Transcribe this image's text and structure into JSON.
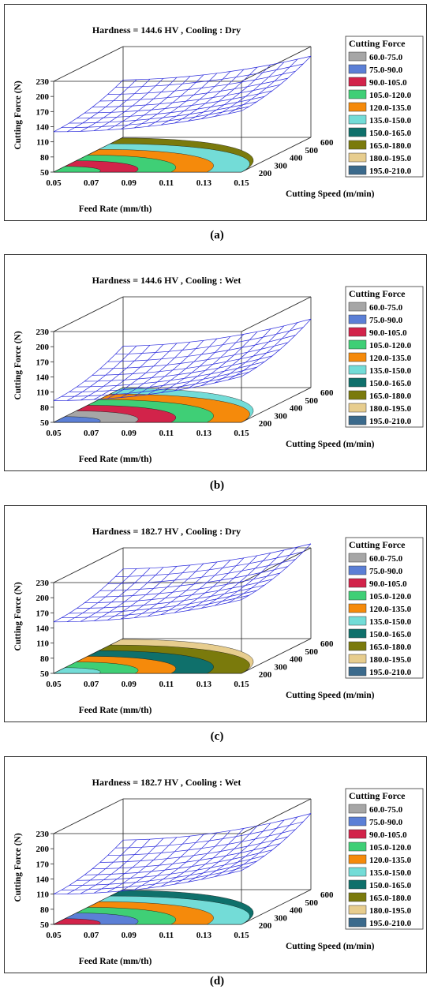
{
  "chart_data": [
    {
      "panel": "a",
      "type": "surface",
      "title": "Hardness = 144.6 HV , Cooling : Dry",
      "xlabel": "Feed Rate (mm/th)",
      "ylabel": "Cutting Speed (m/min)",
      "zlabel": "Cutting Force (N)",
      "x_ticks": [
        "0.05",
        "0.07",
        "0.09",
        "0.11",
        "0.13",
        "0.15"
      ],
      "y_ticks": [
        "200",
        "300",
        "400",
        "500",
        "600"
      ],
      "z_ticks": [
        "50",
        "80",
        "110",
        "140",
        "170",
        "200",
        "230"
      ],
      "xlim": [
        0.05,
        0.15
      ],
      "ylim": [
        150,
        600
      ],
      "zlim": [
        50,
        230
      ],
      "surface_z_front_left": 130,
      "surface_z_back_right": 205,
      "contour_bands_front_to_back": [
        "105.0-120.0",
        "90.0-105.0",
        "105.0-120.0",
        "120.0-135.0",
        "135.0-150.0",
        "165.0-180.0"
      ]
    },
    {
      "panel": "b",
      "type": "surface",
      "title": "Hardness = 144.6 HV , Cooling : Wet",
      "xlabel": "Feed Rate (mm/th)",
      "ylabel": "Cutting Speed (m/min)",
      "zlabel": "Cutting Force (N)",
      "x_ticks": [
        "0.05",
        "0.07",
        "0.09",
        "0.11",
        "0.13",
        "0.15"
      ],
      "y_ticks": [
        "200",
        "300",
        "400",
        "500",
        "600"
      ],
      "z_ticks": [
        "50",
        "80",
        "110",
        "140",
        "170",
        "200",
        "230"
      ],
      "xlim": [
        0.05,
        0.15
      ],
      "ylim": [
        150,
        600
      ],
      "zlim": [
        50,
        230
      ],
      "surface_z_front_left": 93,
      "surface_z_back_right": 180,
      "contour_bands_front_to_back": [
        "75.0-90.0",
        "60.0-75.0",
        "90.0-105.0",
        "105.0-120.0",
        "120.0-135.0",
        "135.0-150.0"
      ]
    },
    {
      "panel": "c",
      "type": "surface",
      "title": "Hardness = 182.7 HV , Cooling : Dry",
      "xlabel": "Feed Rate (mm/th)",
      "ylabel": "Cutting Speed (m/min)",
      "zlabel": "Cutting Force (N)",
      "x_ticks": [
        "0.05",
        "0.07",
        "0.09",
        "0.11",
        "0.13",
        "0.15"
      ],
      "y_ticks": [
        "200",
        "300",
        "400",
        "500",
        "600"
      ],
      "z_ticks": [
        "50",
        "80",
        "110",
        "140",
        "170",
        "200",
        "230"
      ],
      "xlim": [
        0.05,
        0.15
      ],
      "ylim": [
        150,
        600
      ],
      "zlim": [
        50,
        230
      ],
      "surface_z_front_left": 152,
      "surface_z_back_right": 232,
      "contour_bands_front_to_back": [
        "135.0-150.0",
        "105.0-120.0",
        "120.0-135.0",
        "150.0-165.0",
        "165.0-180.0",
        "180.0-195.0"
      ]
    },
    {
      "panel": "d",
      "type": "surface",
      "title": "Hardness = 182.7 HV , Cooling : Wet",
      "xlabel": "Feed Rate (mm/th)",
      "ylabel": "Cutting Speed (m/min)",
      "zlabel": "Cutting Force (N)",
      "x_ticks": [
        "0.05",
        "0.07",
        "0.09",
        "0.11",
        "0.13",
        "0.15"
      ],
      "y_ticks": [
        "200",
        "300",
        "400",
        "500",
        "600"
      ],
      "z_ticks": [
        "50",
        "80",
        "110",
        "140",
        "170",
        "200",
        "230"
      ],
      "xlim": [
        0.05,
        0.15
      ],
      "ylim": [
        150,
        600
      ],
      "zlim": [
        50,
        230
      ],
      "surface_z_front_left": 110,
      "surface_z_back_right": 195,
      "contour_bands_front_to_back": [
        "90.0-105.0",
        "75.0-90.0",
        "105.0-120.0",
        "120.0-135.0",
        "135.0-150.0",
        "150.0-165.0"
      ]
    }
  ],
  "legend": {
    "title": "Cutting Force",
    "items": [
      {
        "label": "60.0-75.0",
        "color": "#a6a6a6"
      },
      {
        "label": "75.0-90.0",
        "color": "#5b7fd6"
      },
      {
        "label": "90.0-105.0",
        "color": "#d2234a"
      },
      {
        "label": "105.0-120.0",
        "color": "#3fcf76"
      },
      {
        "label": "120.0-135.0",
        "color": "#f58a0b"
      },
      {
        "label": "135.0-150.0",
        "color": "#73dcd7"
      },
      {
        "label": "150.0-165.0",
        "color": "#0f706b"
      },
      {
        "label": "165.0-180.0",
        "color": "#7a7a0c"
      },
      {
        "label": "180.0-195.0",
        "color": "#e7cd8e"
      },
      {
        "label": "195.0-210.0",
        "color": "#3b6a8c"
      }
    ]
  },
  "captions": [
    "(a)",
    "(b)",
    "(c)",
    "(d)"
  ],
  "surface_color": "#2b2bdc"
}
